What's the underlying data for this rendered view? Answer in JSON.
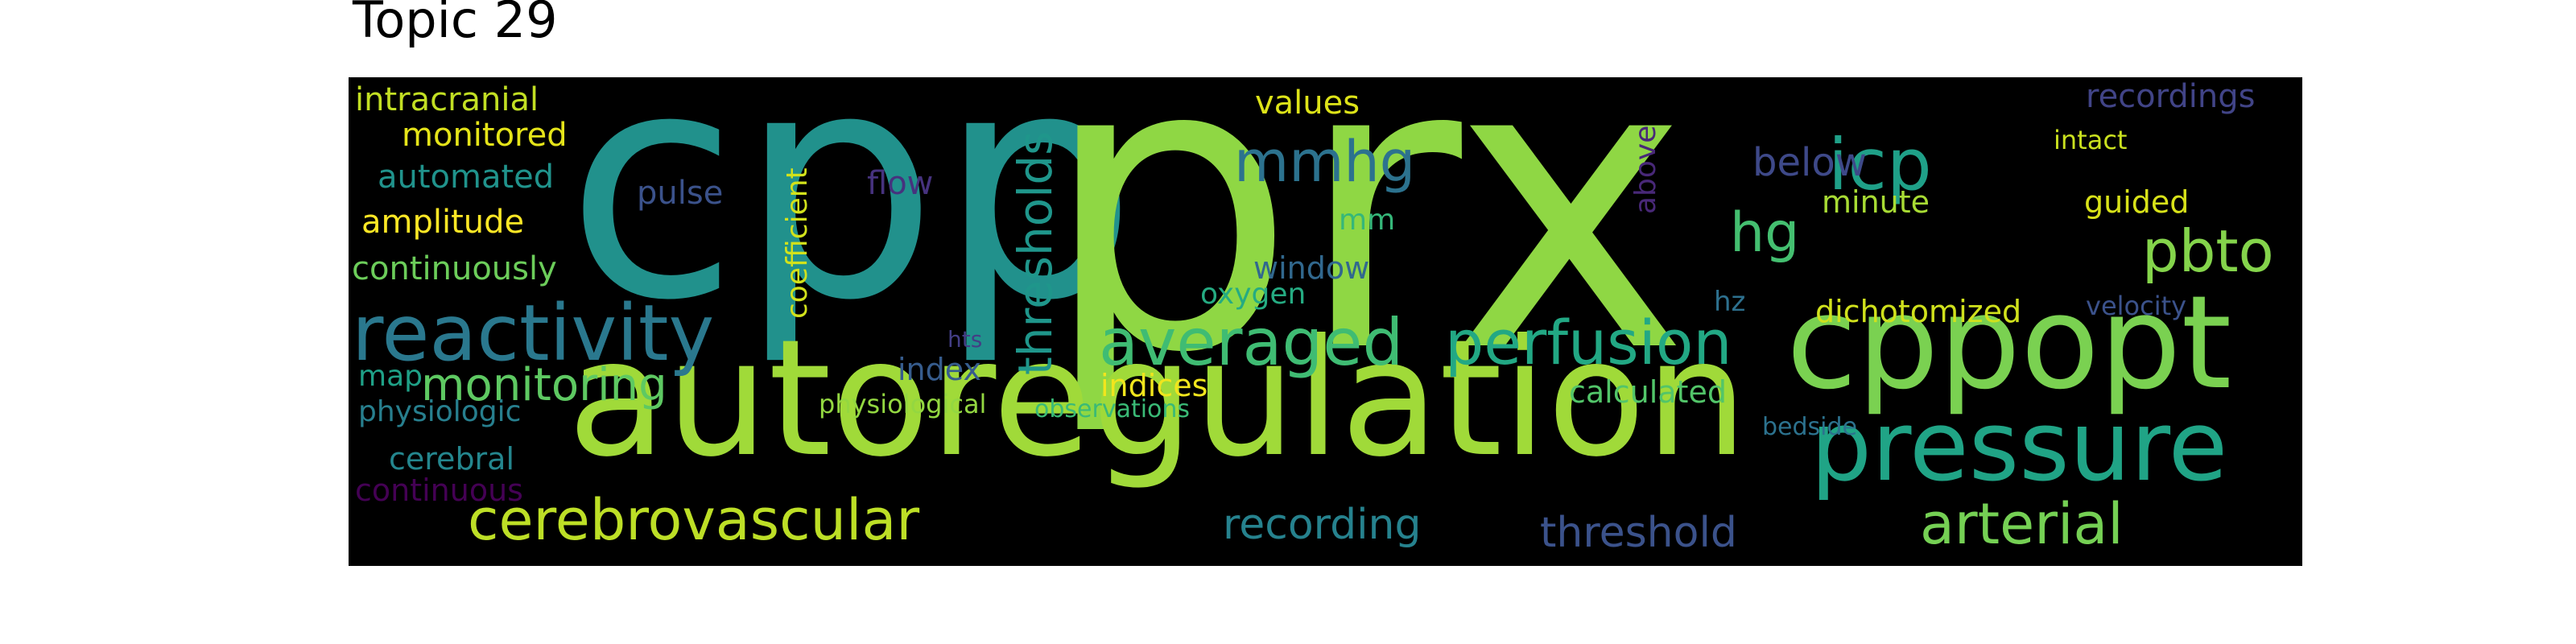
{
  "title": "Topic 29",
  "words": [
    {
      "text": "cpp",
      "color": "#21918c"
    },
    {
      "text": "prx",
      "color": "#8fd744"
    },
    {
      "text": "autoregulation",
      "color": "#a0da39"
    },
    {
      "text": "cppopt",
      "color": "#7ad151"
    },
    {
      "text": "pressure",
      "color": "#20a486"
    },
    {
      "text": "reactivity",
      "color": "#2a788e"
    },
    {
      "text": "cerebrovascular",
      "color": "#bddf26"
    },
    {
      "text": "arterial",
      "color": "#75d054"
    },
    {
      "text": "averaged",
      "color": "#3fbc73"
    },
    {
      "text": "perfusion",
      "color": "#22a884"
    },
    {
      "text": "icp",
      "color": "#1fa088"
    },
    {
      "text": "pbto",
      "color": "#84d44b"
    },
    {
      "text": "mmhg",
      "color": "#2c728e"
    },
    {
      "text": "hg",
      "color": "#44bf70"
    },
    {
      "text": "monitoring",
      "color": "#5ec962"
    },
    {
      "text": "thresholds",
      "color": "#1f968b"
    },
    {
      "text": "recording",
      "color": "#26828e"
    },
    {
      "text": "threshold",
      "color": "#3b528b"
    },
    {
      "text": "below",
      "color": "#3e4989"
    },
    {
      "text": "coefficient",
      "color": "#d2e21b"
    },
    {
      "text": "intracranial",
      "color": "#c2df23"
    },
    {
      "text": "monitored",
      "color": "#e5e419"
    },
    {
      "text": "automated",
      "color": "#20938c"
    },
    {
      "text": "amplitude",
      "color": "#fde725"
    },
    {
      "text": "continuously",
      "color": "#6ccd5a"
    },
    {
      "text": "values",
      "color": "#dde318"
    },
    {
      "text": "recordings",
      "color": "#414487"
    },
    {
      "text": "flow",
      "color": "#46327e"
    },
    {
      "text": "pulse",
      "color": "#3b528b"
    },
    {
      "text": "above",
      "color": "#482878"
    },
    {
      "text": "minute",
      "color": "#a8db34"
    },
    {
      "text": "guided",
      "color": "#d8e219"
    },
    {
      "text": "intact",
      "color": "#cae11f"
    },
    {
      "text": "mm",
      "color": "#35b779"
    },
    {
      "text": "window",
      "color": "#31688e"
    },
    {
      "text": "oxygen",
      "color": "#25ab82"
    },
    {
      "text": "hz",
      "color": "#2d708e"
    },
    {
      "text": "dichotomized",
      "color": "#d0e11c"
    },
    {
      "text": "velocity",
      "color": "#3b528b"
    },
    {
      "text": "index",
      "color": "#365c8d"
    },
    {
      "text": "indices",
      "color": "#f1e51d"
    },
    {
      "text": "calculated",
      "color": "#52c569"
    },
    {
      "text": "map",
      "color": "#1fa187"
    },
    {
      "text": "physiological",
      "color": "#93d741"
    },
    {
      "text": "observations",
      "color": "#3aba76"
    },
    {
      "text": "hts",
      "color": "#433e85"
    },
    {
      "text": "physiologic",
      "color": "#277f8e"
    },
    {
      "text": "bedside",
      "color": "#2c728e"
    },
    {
      "text": "cerebral",
      "color": "#24868e"
    },
    {
      "text": "continuous",
      "color": "#440154"
    }
  ]
}
